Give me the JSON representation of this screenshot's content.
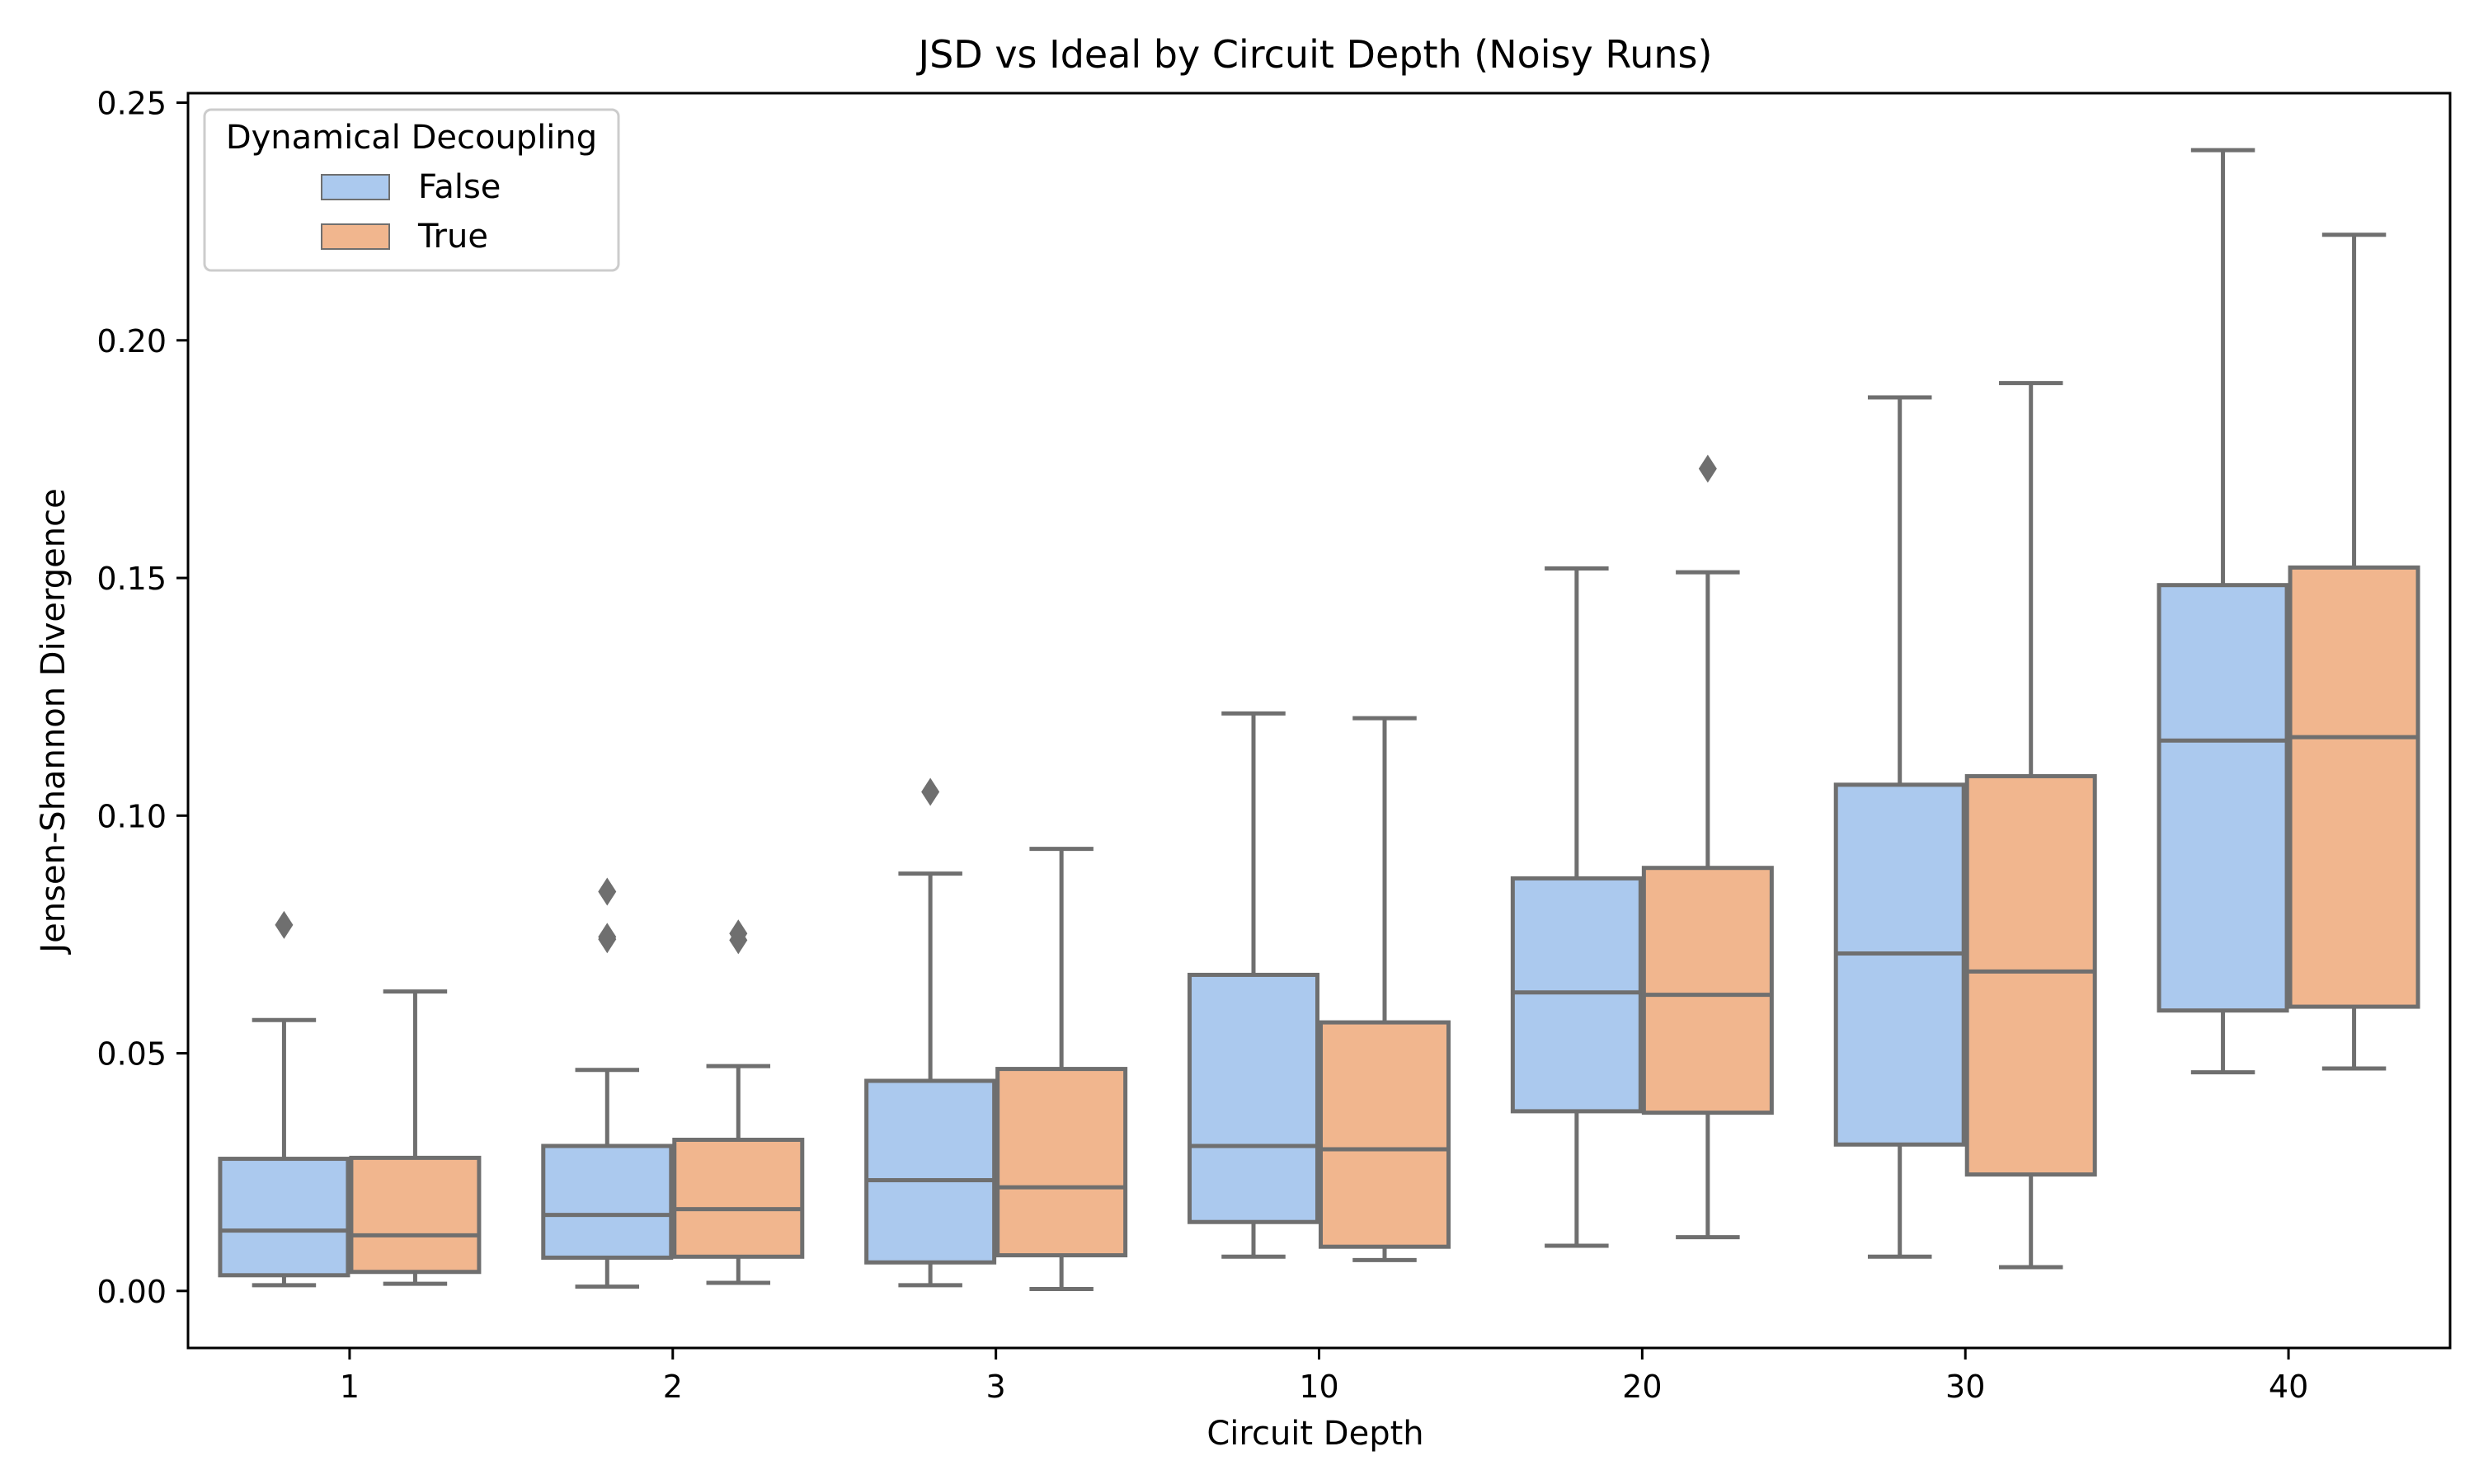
{
  "chart_data": {
    "type": "boxplot",
    "title": "JSD vs Ideal by Circuit Depth (Noisy Runs)",
    "xlabel": "Circuit Depth",
    "ylabel": "Jensen-Shannon Divergence",
    "categories": [
      "1",
      "2",
      "3",
      "10",
      "20",
      "30",
      "40"
    ],
    "ylim": [
      -0.012,
      0.252
    ],
    "yticks": [
      0.0,
      0.05,
      0.1,
      0.15,
      0.2,
      0.25
    ],
    "ytick_labels": [
      "0.00",
      "0.05",
      "0.10",
      "0.15",
      "0.20",
      "0.25"
    ],
    "grid": false,
    "legend": {
      "title": "Dynamical Decoupling",
      "placement": "top-left"
    },
    "series": [
      {
        "name": "False",
        "color": "#abc9ee",
        "boxes": [
          {
            "whisker_low": 0.0012,
            "q1": 0.0033,
            "median": 0.0127,
            "q3": 0.0278,
            "whisker_high": 0.057,
            "outliers": [
              0.077
            ]
          },
          {
            "whisker_low": 0.0009,
            "q1": 0.007,
            "median": 0.016,
            "q3": 0.0305,
            "whisker_high": 0.0465,
            "outliers": [
              0.074,
              0.0745,
              0.084
            ]
          },
          {
            "whisker_low": 0.0012,
            "q1": 0.006,
            "median": 0.0233,
            "q3": 0.0442,
            "whisker_high": 0.0878,
            "outliers": [
              0.105
            ]
          },
          {
            "whisker_low": 0.0072,
            "q1": 0.0145,
            "median": 0.0305,
            "q3": 0.0665,
            "whisker_high": 0.1215,
            "outliers": []
          },
          {
            "whisker_low": 0.0095,
            "q1": 0.0378,
            "median": 0.0628,
            "q3": 0.0868,
            "whisker_high": 0.152,
            "outliers": []
          },
          {
            "whisker_low": 0.0072,
            "q1": 0.0308,
            "median": 0.071,
            "q3": 0.1065,
            "whisker_high": 0.188,
            "outliers": []
          },
          {
            "whisker_low": 0.046,
            "q1": 0.059,
            "median": 0.1158,
            "q3": 0.1485,
            "whisker_high": 0.24,
            "outliers": []
          }
        ]
      },
      {
        "name": "True",
        "color": "#f1b68e",
        "boxes": [
          {
            "whisker_low": 0.0015,
            "q1": 0.004,
            "median": 0.0117,
            "q3": 0.028,
            "whisker_high": 0.063,
            "outliers": []
          },
          {
            "whisker_low": 0.0017,
            "q1": 0.0072,
            "median": 0.0172,
            "q3": 0.0318,
            "whisker_high": 0.0473,
            "outliers": [
              0.0738,
              0.0752
            ]
          },
          {
            "whisker_low": 0.0004,
            "q1": 0.0075,
            "median": 0.0218,
            "q3": 0.0467,
            "whisker_high": 0.093,
            "outliers": []
          },
          {
            "whisker_low": 0.0065,
            "q1": 0.0093,
            "median": 0.0298,
            "q3": 0.0565,
            "whisker_high": 0.1205,
            "outliers": []
          },
          {
            "whisker_low": 0.0113,
            "q1": 0.0375,
            "median": 0.0623,
            "q3": 0.089,
            "whisker_high": 0.1512,
            "outliers": [
              0.173
            ]
          },
          {
            "whisker_low": 0.005,
            "q1": 0.0245,
            "median": 0.0672,
            "q3": 0.1083,
            "whisker_high": 0.191,
            "outliers": []
          },
          {
            "whisker_low": 0.0468,
            "q1": 0.0598,
            "median": 0.1165,
            "q3": 0.1522,
            "whisker_high": 0.2222,
            "outliers": []
          }
        ]
      }
    ]
  }
}
